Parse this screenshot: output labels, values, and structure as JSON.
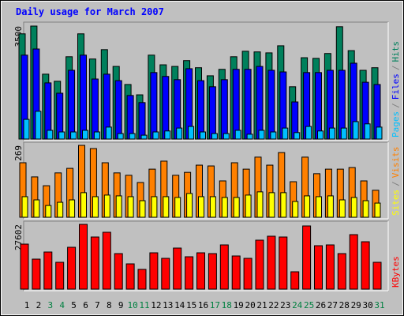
{
  "legend_separator": "/",
  "chart_data": [
    {
      "type": "bar",
      "title": "Daily usage for March 2007",
      "ylim": [
        0,
        3500
      ],
      "yticks": [
        3500
      ],
      "series": [
        {
          "name": "Hits",
          "color": "#00805c",
          "values": [
            3260,
            3500,
            2010,
            1790,
            2550,
            3260,
            2480,
            2770,
            2250,
            1690,
            1370,
            2600,
            2300,
            2250,
            2430,
            2210,
            1960,
            2160,
            2550,
            2720,
            2700,
            2670,
            2890,
            1620,
            2520,
            2500,
            2650,
            3480,
            2740,
            2130,
            2210
          ]
        },
        {
          "name": "Files",
          "color": "#0000ff",
          "values": [
            2600,
            2790,
            1740,
            1420,
            2130,
            2600,
            1860,
            2010,
            1810,
            1350,
            1130,
            2060,
            1940,
            1840,
            2180,
            1810,
            1620,
            1840,
            2160,
            2160,
            2250,
            2130,
            2080,
            1150,
            2060,
            2060,
            2130,
            2130,
            2350,
            1760,
            1690
          ]
        },
        {
          "name": "Pages",
          "color": "#00c0ff",
          "values": [
            610,
            860,
            270,
            220,
            220,
            270,
            220,
            370,
            170,
            170,
            120,
            220,
            250,
            340,
            390,
            220,
            170,
            170,
            270,
            150,
            270,
            220,
            340,
            200,
            390,
            250,
            340,
            340,
            540,
            470,
            370
          ]
        }
      ]
    },
    {
      "type": "bar",
      "ylim": [
        0,
        269
      ],
      "yticks": [
        269
      ],
      "series": [
        {
          "name": "Visits",
          "color": "#ff8000",
          "values": [
            204,
            151,
            118,
            166,
            183,
            269,
            257,
            204,
            166,
            157,
            130,
            180,
            210,
            157,
            168,
            195,
            192,
            136,
            204,
            180,
            225,
            195,
            242,
            133,
            225,
            163,
            180,
            180,
            186,
            136,
            101
          ]
        },
        {
          "name": "Sites",
          "color": "#ffff00",
          "values": [
            77,
            65,
            44,
            56,
            65,
            92,
            77,
            83,
            80,
            77,
            62,
            77,
            77,
            74,
            89,
            77,
            77,
            74,
            74,
            83,
            95,
            92,
            92,
            59,
            80,
            77,
            80,
            65,
            74,
            62,
            53
          ]
        }
      ]
    },
    {
      "type": "bar",
      "ylim": [
        0,
        27602
      ],
      "yticks": [
        27602
      ],
      "categories": [
        "1",
        "2",
        "3",
        "4",
        "5",
        "6",
        "7",
        "8",
        "9",
        "10",
        "11",
        "12",
        "13",
        "14",
        "15",
        "16",
        "17",
        "18",
        "19",
        "20",
        "21",
        "22",
        "23",
        "24",
        "25",
        "26",
        "27",
        "28",
        "29",
        "30",
        "31"
      ],
      "category_colors": [
        "#000000",
        "#000000",
        "#008040",
        "#008040",
        "#000000",
        "#000000",
        "#000000",
        "#000000",
        "#000000",
        "#008040",
        "#008040",
        "#000000",
        "#000000",
        "#000000",
        "#000000",
        "#000000",
        "#008040",
        "#008040",
        "#000000",
        "#000000",
        "#000000",
        "#000000",
        "#000000",
        "#008040",
        "#008040",
        "#000000",
        "#000000",
        "#000000",
        "#000000",
        "#000000",
        "#008040"
      ],
      "series": [
        {
          "name": "KBytes",
          "color": "#ff0000",
          "values": [
            19186,
            12791,
            15820,
            11444,
            17840,
            27602,
            22216,
            24235,
            15147,
            10771,
            8415,
            15484,
            13127,
            17503,
            13801,
            15484,
            15147,
            18850,
            14137,
            13127,
            20869,
            22552,
            22216,
            7405,
            26928,
            18513,
            18850,
            15147,
            23225,
            20196,
            11444
          ]
        }
      ]
    }
  ]
}
